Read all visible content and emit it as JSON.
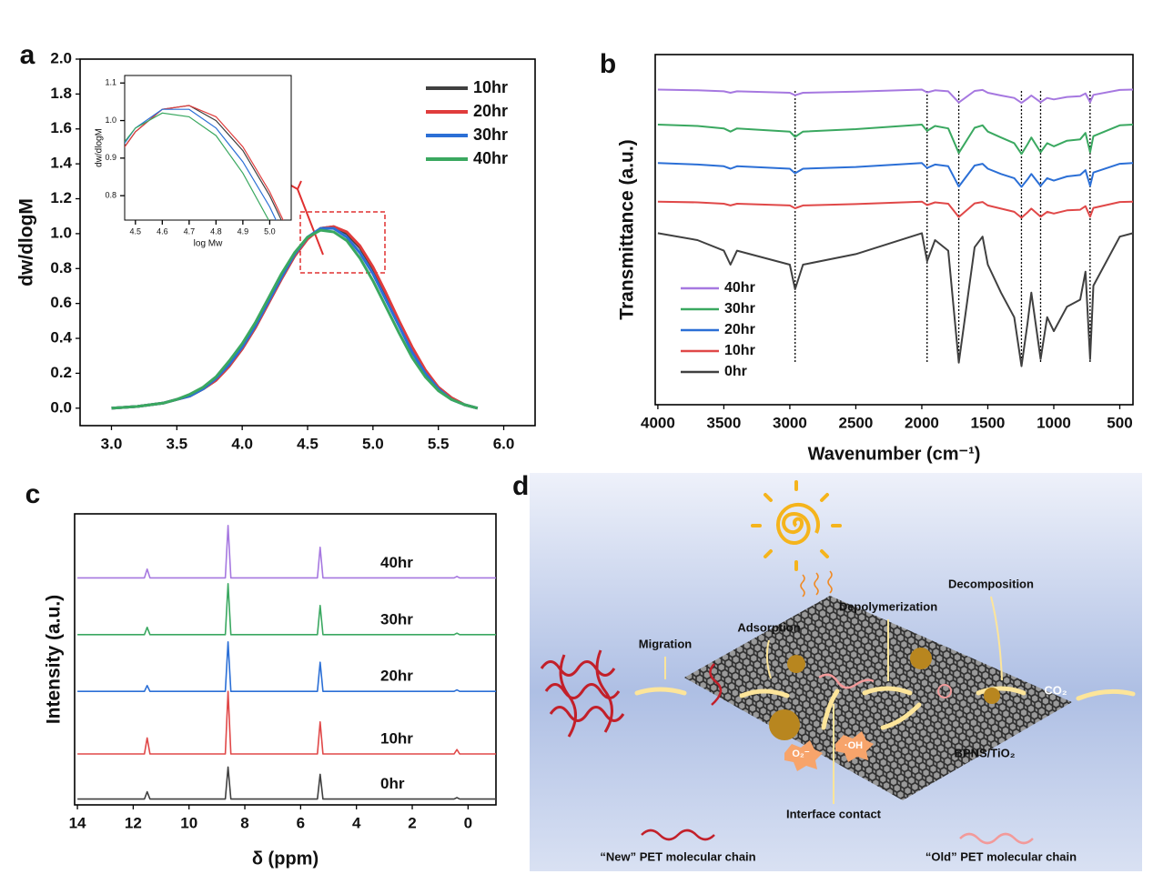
{
  "chart_data": [
    {
      "type": "line",
      "panel": "a",
      "ylabel": "dw/dlogM",
      "xlim": [
        2.76,
        6.24
      ],
      "ylim": [
        -0.1,
        2.0
      ],
      "xticks": [
        {
          "value": 3,
          "label": "3.0"
        },
        3.5,
        {
          "value": 4,
          "label": "4.0"
        },
        4.5,
        {
          "value": 5,
          "label": "5.0"
        },
        5.5,
        {
          "value": 6,
          "label": "6.0"
        }
      ],
      "yticks": [
        {
          "value": 0,
          "label": "0.0"
        },
        0.2,
        0.4,
        0.6,
        0.8,
        {
          "value": 1,
          "label": "1.0"
        },
        1.2,
        1.4,
        1.6,
        1.8,
        {
          "value": 2,
          "label": "2.0"
        }
      ],
      "legend": "upper right",
      "x": [
        3.0,
        3.1,
        3.2,
        3.3,
        3.4,
        3.5,
        3.6,
        3.7,
        3.8,
        3.9,
        4.0,
        4.1,
        4.2,
        4.3,
        4.4,
        4.5,
        4.6,
        4.7,
        4.8,
        4.9,
        5.0,
        5.1,
        5.2,
        5.3,
        5.4,
        5.5,
        5.6,
        5.7,
        5.8
      ],
      "series": [
        {
          "name": "10hr",
          "color": "#404040",
          "values": [
            0.0,
            0.005,
            0.01,
            0.02,
            0.03,
            0.05,
            0.07,
            0.11,
            0.16,
            0.24,
            0.34,
            0.46,
            0.6,
            0.74,
            0.87,
            0.97,
            1.03,
            1.04,
            1.0,
            0.92,
            0.8,
            0.65,
            0.49,
            0.34,
            0.21,
            0.12,
            0.06,
            0.02,
            0.0
          ]
        },
        {
          "name": "20hr",
          "color": "#e03c3c",
          "values": [
            0.0,
            0.005,
            0.01,
            0.02,
            0.03,
            0.05,
            0.07,
            0.11,
            0.16,
            0.24,
            0.34,
            0.46,
            0.6,
            0.74,
            0.87,
            0.97,
            1.03,
            1.04,
            1.01,
            0.93,
            0.81,
            0.66,
            0.5,
            0.35,
            0.22,
            0.12,
            0.06,
            0.02,
            0.0
          ]
        },
        {
          "name": "30hr",
          "color": "#2b6fd6",
          "values": [
            0.0,
            0.005,
            0.01,
            0.02,
            0.03,
            0.05,
            0.07,
            0.11,
            0.17,
            0.25,
            0.35,
            0.47,
            0.61,
            0.75,
            0.88,
            0.98,
            1.03,
            1.03,
            0.98,
            0.89,
            0.77,
            0.62,
            0.47,
            0.32,
            0.2,
            0.11,
            0.05,
            0.02,
            0.0
          ]
        },
        {
          "name": "40hr",
          "color": "#3aa860",
          "values": [
            0.0,
            0.005,
            0.01,
            0.02,
            0.03,
            0.05,
            0.08,
            0.12,
            0.18,
            0.27,
            0.37,
            0.49,
            0.63,
            0.77,
            0.89,
            0.98,
            1.02,
            1.01,
            0.96,
            0.86,
            0.73,
            0.58,
            0.43,
            0.29,
            0.18,
            0.1,
            0.05,
            0.02,
            0.0
          ]
        }
      ],
      "inset": {
        "xlabel": "log Mw",
        "ylabel": "dw/dlogM",
        "xlim": [
          4.46,
          5.08
        ],
        "ylim": [
          0.735,
          1.12
        ],
        "xticks": [
          4.5,
          4.6,
          4.7,
          4.8,
          4.9,
          {
            "value": 5,
            "label": "5.0"
          }
        ],
        "yticks": [
          0.8,
          0.9,
          {
            "value": 1,
            "label": "1.0"
          },
          1.1
        ]
      }
    },
    {
      "type": "line",
      "panel": "b",
      "xlabel": "Wavenumber (cm⁻¹)",
      "ylabel": "Transmittance (a.u.)",
      "xlim": [
        4020,
        400
      ],
      "ylim": [
        0,
        10
      ],
      "xticks": [
        4000,
        3500,
        3000,
        2500,
        2000,
        1500,
        1000,
        500
      ],
      "legend": "lower left",
      "reference_lines": [
        2960,
        1960,
        1720,
        1245,
        1100,
        725
      ],
      "x": [
        4000,
        3700,
        3500,
        3450,
        3400,
        3000,
        2960,
        2900,
        2500,
        2000,
        1960,
        1900,
        1800,
        1720,
        1600,
        1540,
        1500,
        1400,
        1300,
        1245,
        1200,
        1170,
        1100,
        1050,
        1000,
        900,
        800,
        760,
        725,
        700,
        500,
        400
      ],
      "series": [
        {
          "name": "40hr",
          "color": "#a678e0",
          "values": [
            9.0,
            8.98,
            8.95,
            8.91,
            8.95,
            8.91,
            8.84,
            8.91,
            8.94,
            9.0,
            8.92,
            8.98,
            8.95,
            8.63,
            8.96,
            8.99,
            8.91,
            8.83,
            8.76,
            8.62,
            8.74,
            8.83,
            8.64,
            8.76,
            8.72,
            8.79,
            8.81,
            8.89,
            8.64,
            8.85,
            8.99,
            9.0
          ]
        },
        {
          "name": "30hr",
          "color": "#3aa860",
          "values": [
            8.0,
            7.96,
            7.89,
            7.8,
            7.89,
            7.8,
            7.65,
            7.8,
            7.87,
            8.0,
            7.82,
            7.96,
            7.89,
            7.19,
            7.91,
            7.98,
            7.8,
            7.63,
            7.47,
            7.16,
            7.43,
            7.63,
            7.21,
            7.47,
            7.38,
            7.54,
            7.58,
            7.76,
            7.21,
            7.67,
            7.98,
            8.0
          ]
        },
        {
          "name": "20hr",
          "color": "#2b6fd6",
          "values": [
            6.9,
            6.86,
            6.81,
            6.74,
            6.81,
            6.74,
            6.61,
            6.74,
            6.79,
            6.9,
            6.76,
            6.86,
            6.81,
            6.23,
            6.83,
            6.88,
            6.74,
            6.59,
            6.47,
            6.22,
            6.43,
            6.59,
            6.25,
            6.47,
            6.4,
            6.52,
            6.56,
            6.7,
            6.25,
            6.63,
            6.88,
            6.9
          ]
        },
        {
          "name": "10hr",
          "color": "#e04848",
          "values": [
            5.8,
            5.78,
            5.74,
            5.69,
            5.74,
            5.69,
            5.61,
            5.69,
            5.73,
            5.8,
            5.7,
            5.78,
            5.74,
            5.36,
            5.75,
            5.79,
            5.69,
            5.6,
            5.51,
            5.34,
            5.49,
            5.6,
            5.37,
            5.51,
            5.46,
            5.55,
            5.57,
            5.67,
            5.37,
            5.62,
            5.79,
            5.8
          ]
        },
        {
          "name": "0hr",
          "color": "#404040",
          "values": [
            4.9,
            4.7,
            4.4,
            4.0,
            4.4,
            4.0,
            3.3,
            4.0,
            4.3,
            4.9,
            4.1,
            4.7,
            4.4,
            1.2,
            4.5,
            4.8,
            4.0,
            3.2,
            2.5,
            1.1,
            2.3,
            3.2,
            1.3,
            2.5,
            2.1,
            2.8,
            3.0,
            3.8,
            1.3,
            3.4,
            4.8,
            4.9
          ]
        }
      ]
    },
    {
      "type": "line",
      "panel": "c",
      "xlabel": "δ (ppm)",
      "ylabel": "Intensity (a.u.)",
      "xlim": [
        14.1,
        -1.0
      ],
      "ylim": [
        0,
        10
      ],
      "xticks": [
        14,
        12,
        10,
        8,
        6,
        4,
        2,
        0
      ],
      "legend": "inline",
      "x": [
        14,
        11.6,
        11.5,
        11.4,
        8.7,
        8.6,
        8.5,
        5.4,
        5.3,
        5.2,
        0.5,
        0.4,
        0.3,
        -1
      ],
      "series": [
        {
          "name": "40hr",
          "color": "#a678e0",
          "values": [
            7.8,
            7.8,
            8.1,
            7.8,
            7.8,
            9.6,
            7.8,
            7.8,
            8.85,
            7.8,
            7.8,
            7.85,
            7.8,
            7.8
          ]
        },
        {
          "name": "30hr",
          "color": "#3aa860",
          "values": [
            5.85,
            5.85,
            6.1,
            5.85,
            5.85,
            7.6,
            5.85,
            5.85,
            6.85,
            5.85,
            5.85,
            5.9,
            5.85,
            5.85
          ]
        },
        {
          "name": "20hr",
          "color": "#2b6fd6",
          "values": [
            3.9,
            3.9,
            4.1,
            3.9,
            3.9,
            5.6,
            3.9,
            3.9,
            4.9,
            3.9,
            3.9,
            3.95,
            3.9,
            3.9
          ]
        },
        {
          "name": "10hr",
          "color": "#e04848",
          "values": [
            1.75,
            1.75,
            2.3,
            1.75,
            1.75,
            3.9,
            1.75,
            1.75,
            2.85,
            1.75,
            1.75,
            1.9,
            1.75,
            1.75
          ]
        },
        {
          "name": "0hr",
          "color": "#404040",
          "values": [
            0.2,
            0.2,
            0.45,
            0.2,
            0.2,
            1.3,
            0.2,
            0.2,
            1.05,
            0.2,
            0.2,
            0.25,
            0.2,
            0.2
          ]
        }
      ]
    }
  ],
  "diagram": {
    "panel": "d",
    "steps": [
      "Migration",
      "Adsorption",
      "Depolymerization",
      "Decomposition"
    ],
    "product": "CO₂",
    "catalyst": "BPNS/TiO₂",
    "interface": "Interface contact",
    "radicals": [
      "O₂⁻",
      "·OH"
    ],
    "legend": [
      "“New” PET molecular chain",
      "“Old” PET molecular chain"
    ]
  }
}
